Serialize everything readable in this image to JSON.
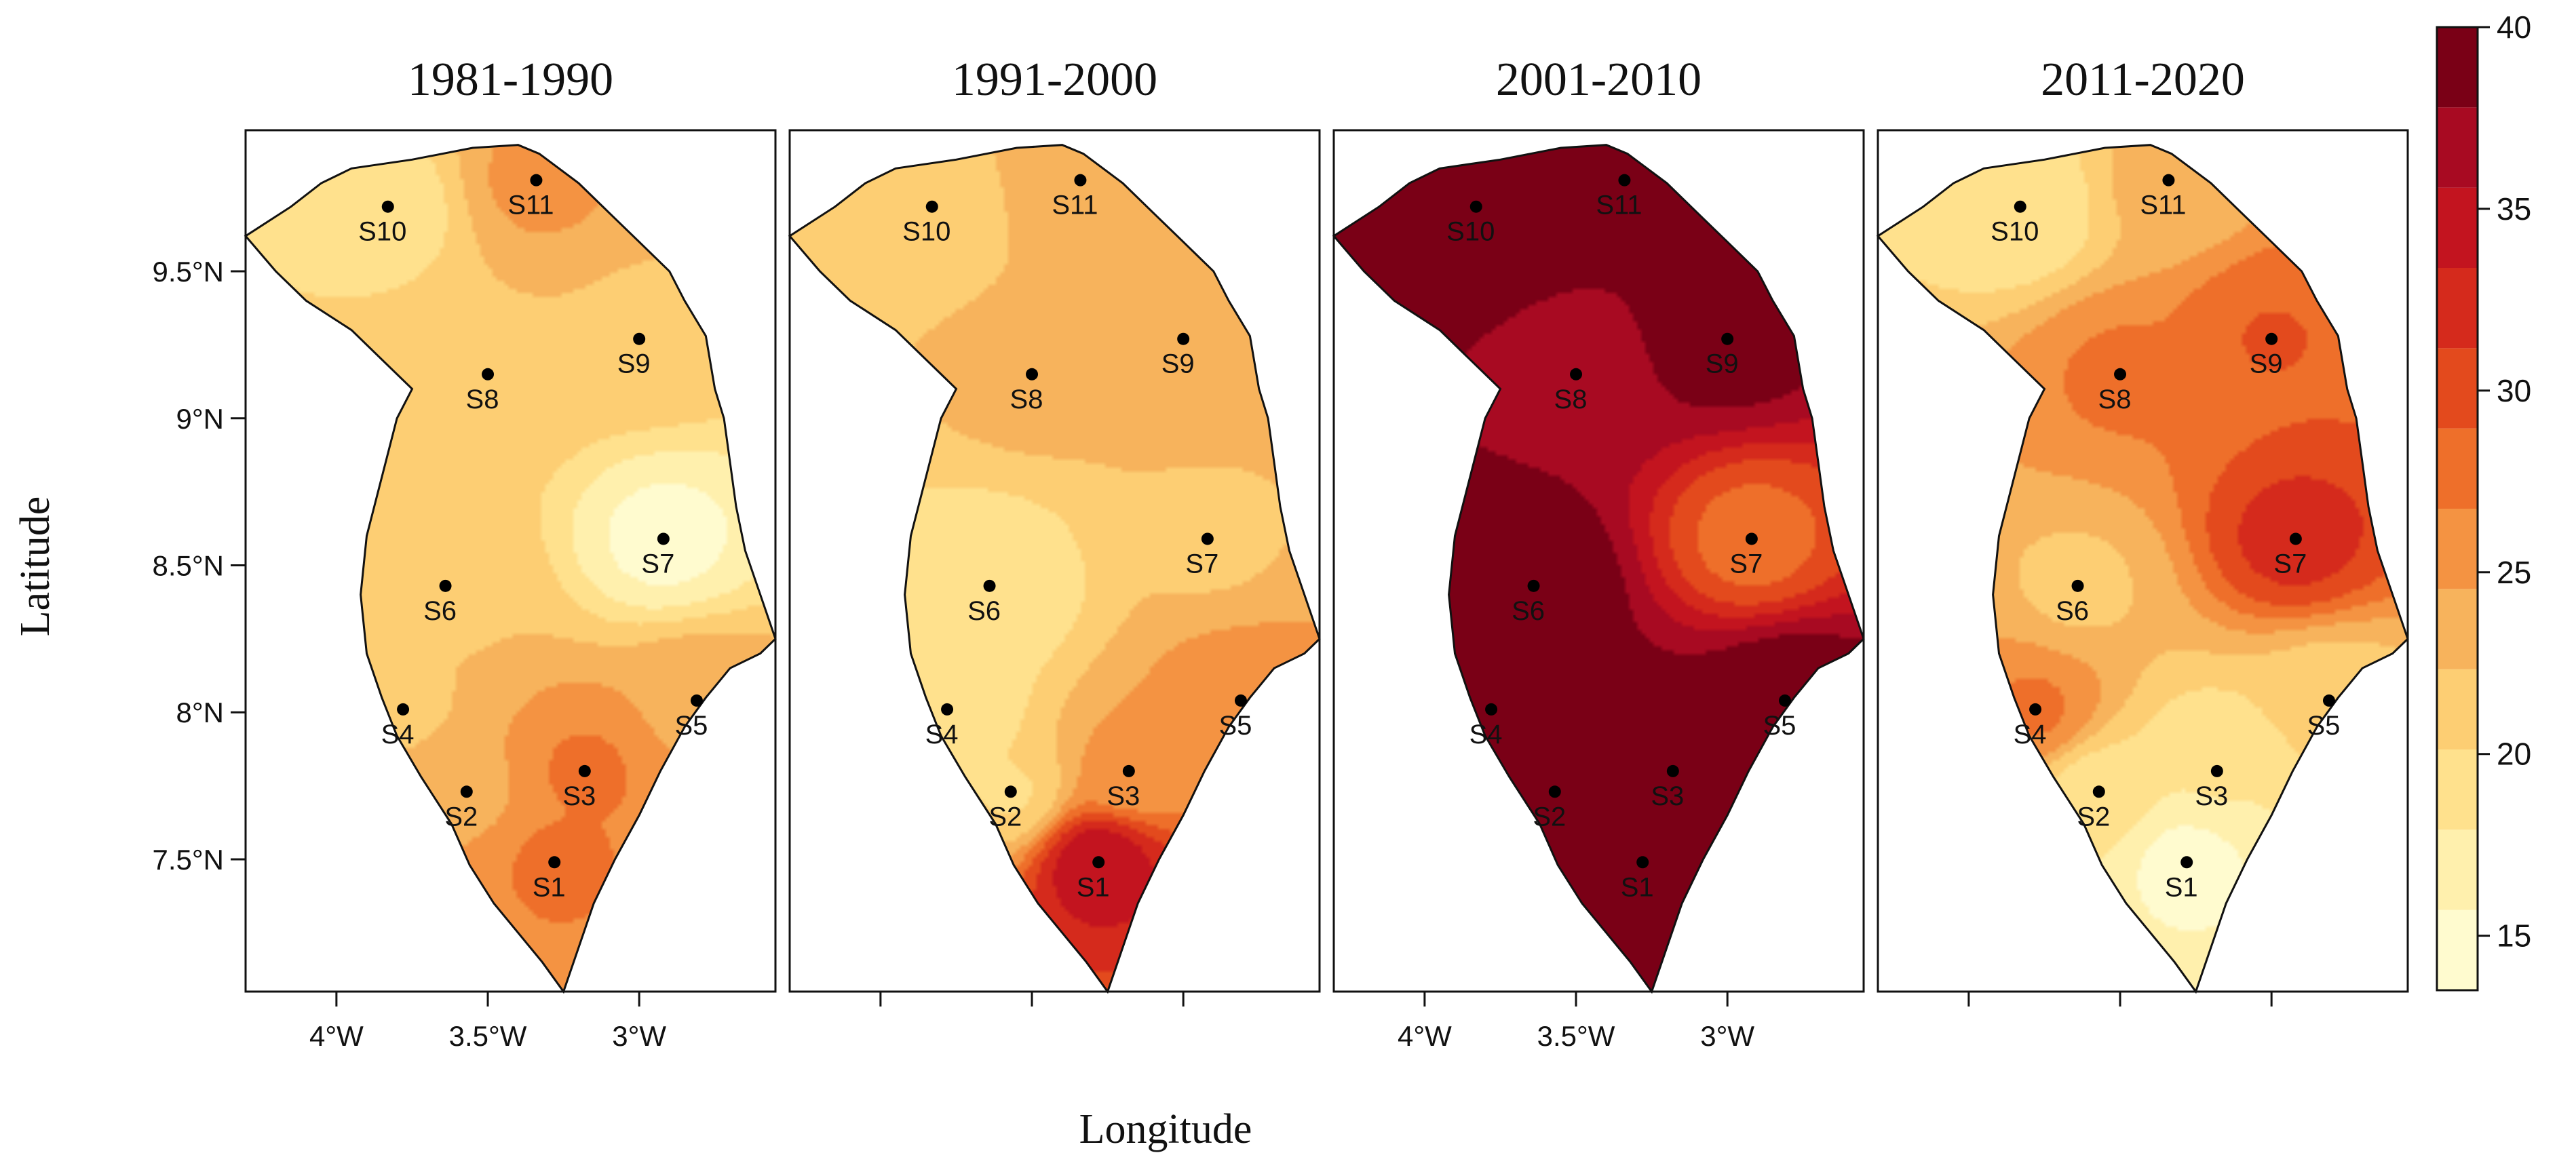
{
  "chart_data": {
    "type": "heatmap",
    "panels": [
      {
        "title": "1981-1990",
        "station_values": {
          "S1": 27,
          "S2": 24,
          "S3": 27,
          "S4": 22,
          "S5": 24,
          "S6": 22,
          "S7": 15,
          "S8": 22,
          "S9": 22,
          "S10": 19,
          "S11": 25
        },
        "background_value": 23
      },
      {
        "title": "1991-2000",
        "station_values": {
          "S1": 35,
          "S2": 20,
          "S3": 25,
          "S4": 18,
          "S5": 26,
          "S6": 18,
          "S7": 22,
          "S8": 23,
          "S9": 24,
          "S10": 21,
          "S11": 24
        },
        "background_value": 22
      },
      {
        "title": "2001-2010",
        "station_values": {
          "S1": 38,
          "S2": 40,
          "S3": 40,
          "S4": 38,
          "S5": 40,
          "S6": 40,
          "S7": 28,
          "S8": 37,
          "S9": 39,
          "S10": 40,
          "S11": 38
        },
        "background_value": 37.5
      },
      {
        "title": "2011-2020",
        "station_values": {
          "S1": 15,
          "S2": 19,
          "S3": 18,
          "S4": 27,
          "S5": 21,
          "S6": 22,
          "S7": 32,
          "S8": 27,
          "S9": 29,
          "S10": 18,
          "S11": 23
        },
        "background_value": 24
      }
    ],
    "stations": [
      {
        "name": "S1",
        "lon": -3.28,
        "lat": 7.49
      },
      {
        "name": "S2",
        "lon": -3.57,
        "lat": 7.73
      },
      {
        "name": "S3",
        "lon": -3.18,
        "lat": 7.8
      },
      {
        "name": "S4",
        "lon": -3.78,
        "lat": 8.01
      },
      {
        "name": "S5",
        "lon": -2.81,
        "lat": 8.04
      },
      {
        "name": "S6",
        "lon": -3.64,
        "lat": 8.43
      },
      {
        "name": "S7",
        "lon": -2.92,
        "lat": 8.59
      },
      {
        "name": "S8",
        "lon": -3.5,
        "lat": 9.15
      },
      {
        "name": "S9",
        "lon": -3.0,
        "lat": 9.27
      },
      {
        "name": "S10",
        "lon": -3.83,
        "lat": 9.72
      },
      {
        "name": "S11",
        "lon": -3.34,
        "lat": 9.81
      }
    ],
    "boundary": [
      [
        -3.95,
        9.85
      ],
      [
        -3.75,
        9.88
      ],
      [
        -3.55,
        9.92
      ],
      [
        -3.4,
        9.93
      ],
      [
        -3.33,
        9.9
      ],
      [
        -3.2,
        9.8
      ],
      [
        -3.1,
        9.7
      ],
      [
        -3.0,
        9.6
      ],
      [
        -2.9,
        9.5
      ],
      [
        -2.85,
        9.4
      ],
      [
        -2.78,
        9.28
      ],
      [
        -2.75,
        9.1
      ],
      [
        -2.72,
        9.0
      ],
      [
        -2.7,
        8.85
      ],
      [
        -2.68,
        8.7
      ],
      [
        -2.65,
        8.55
      ],
      [
        -2.6,
        8.4
      ],
      [
        -2.55,
        8.25
      ],
      [
        -2.6,
        8.2
      ],
      [
        -2.7,
        8.15
      ],
      [
        -2.78,
        8.05
      ],
      [
        -2.85,
        7.95
      ],
      [
        -2.93,
        7.8
      ],
      [
        -3.0,
        7.65
      ],
      [
        -3.08,
        7.5
      ],
      [
        -3.15,
        7.35
      ],
      [
        -3.2,
        7.2
      ],
      [
        -3.25,
        7.05
      ],
      [
        -3.32,
        7.15
      ],
      [
        -3.4,
        7.25
      ],
      [
        -3.48,
        7.35
      ],
      [
        -3.56,
        7.48
      ],
      [
        -3.62,
        7.62
      ],
      [
        -3.72,
        7.78
      ],
      [
        -3.8,
        7.92
      ],
      [
        -3.85,
        8.05
      ],
      [
        -3.9,
        8.2
      ],
      [
        -3.92,
        8.4
      ],
      [
        -3.9,
        8.6
      ],
      [
        -3.85,
        8.8
      ],
      [
        -3.8,
        9.0
      ],
      [
        -3.75,
        9.1
      ],
      [
        -3.85,
        9.2
      ],
      [
        -3.95,
        9.3
      ],
      [
        -4.1,
        9.4
      ],
      [
        -4.2,
        9.5
      ],
      [
        -4.3,
        9.62
      ],
      [
        -4.15,
        9.72
      ],
      [
        -4.05,
        9.8
      ]
    ],
    "xlim": [
      -4.3,
      -2.55
    ],
    "ylim": [
      7.05,
      9.98
    ],
    "x_ticks": [
      -4.0,
      -3.5,
      -3.0
    ],
    "x_tick_labels": [
      "4°W",
      "3.5°W",
      "3°W"
    ],
    "y_ticks": [
      7.5,
      8.0,
      8.5,
      9.0,
      9.5
    ],
    "y_tick_labels": [
      "7.5°N",
      "8°N",
      "8.5°N",
      "9°N",
      "9.5°N"
    ],
    "xlabel": "Longitude",
    "ylabel": "Latitude",
    "colorbar": {
      "min": 13.5,
      "max": 40,
      "ticks": [
        15,
        20,
        25,
        30,
        35,
        40
      ],
      "tick_labels": [
        "15",
        "20",
        "25",
        "30",
        "35",
        "40"
      ],
      "colors": [
        "#fffbcf",
        "#fff0ad",
        "#ffe18d",
        "#fdce73",
        "#f7b35c",
        "#f49342",
        "#ee6f2a",
        "#e34a1d",
        "#d52a1c",
        "#c3141f",
        "#a80a22",
        "#7a0016"
      ]
    }
  }
}
